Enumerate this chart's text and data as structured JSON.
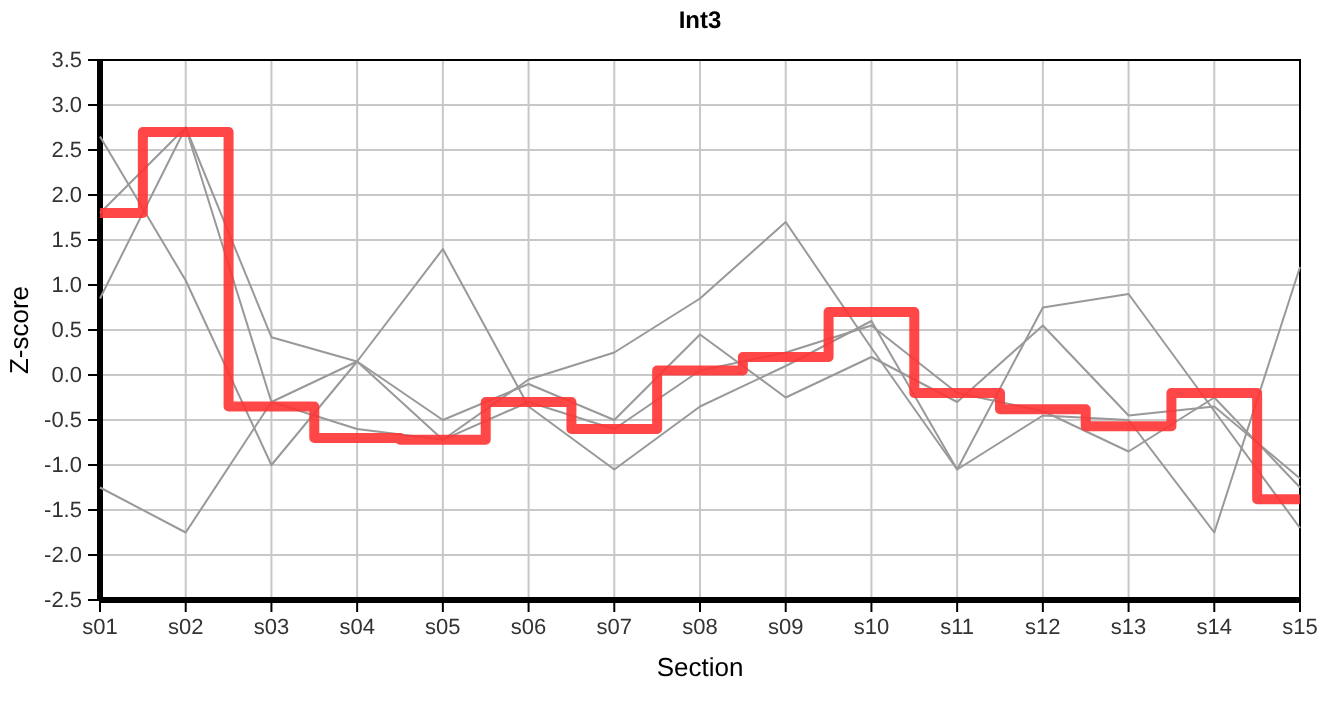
{
  "chart_data": {
    "type": "line",
    "title": "Int3",
    "xlabel": "Section",
    "ylabel": "Z-score",
    "categories": [
      "s01",
      "s02",
      "s03",
      "s04",
      "s05",
      "s06",
      "s07",
      "s08",
      "s09",
      "s10",
      "s11",
      "s12",
      "s13",
      "s14",
      "s15"
    ],
    "ylim": [
      -2.5,
      3.5
    ],
    "yticks": [
      {
        "value": -2.5,
        "label": "-2.5"
      },
      {
        "value": -2,
        "label": "-2.0"
      },
      {
        "value": -1.5,
        "label": "-1.5"
      },
      {
        "value": -1,
        "label": "-1.0"
      },
      {
        "value": -0.5,
        "label": "-0.5"
      },
      {
        "value": 0,
        "label": "0.0"
      },
      {
        "value": 0.5,
        "label": "0.5"
      },
      {
        "value": 1,
        "label": "1.0"
      },
      {
        "value": 1.5,
        "label": "1.5"
      },
      {
        "value": 2,
        "label": "2.0"
      },
      {
        "value": 2.5,
        "label": "2.5"
      },
      {
        "value": 3,
        "label": "3.0"
      },
      {
        "value": 3.5,
        "label": "3.5"
      }
    ],
    "grid": true,
    "marker": "none",
    "line_style": "solid",
    "series": [
      {
        "color": "#999999",
        "values": [
          0.85,
          2.75,
          -0.3,
          0.15,
          -0.5,
          -0.1,
          -0.5,
          0.45,
          -0.25,
          0.2,
          -0.3,
          0.55,
          -0.45,
          -0.35,
          -1.15
        ]
      },
      {
        "color": "#999999",
        "values": [
          2.65,
          1.05,
          -1.0,
          0.15,
          1.4,
          -0.35,
          -1.05,
          -0.35,
          0.1,
          0.6,
          -1.05,
          -0.45,
          -0.5,
          -1.75,
          1.2
        ]
      },
      {
        "color": "#999999",
        "values": [
          1.8,
          2.75,
          0.42,
          0.15,
          -0.72,
          -0.05,
          0.25,
          0.85,
          1.7,
          0.3,
          -1.05,
          0.75,
          0.9,
          -0.4,
          -1.7
        ]
      },
      {
        "color": "#999999",
        "values": [
          -1.25,
          -1.75,
          -0.3,
          -0.6,
          -0.72,
          -0.3,
          -0.6,
          0.05,
          0.25,
          0.55,
          -0.2,
          -0.4,
          -0.85,
          -0.25,
          -1.25
        ]
      },
      {
        "type": "step",
        "color": "#ff3333",
        "values": [
          1.8,
          2.7,
          -0.35,
          -0.7,
          -0.72,
          -0.3,
          -0.6,
          0.05,
          0.2,
          0.7,
          -0.2,
          -0.38,
          -0.57,
          -0.2,
          -1.38
        ]
      }
    ]
  }
}
